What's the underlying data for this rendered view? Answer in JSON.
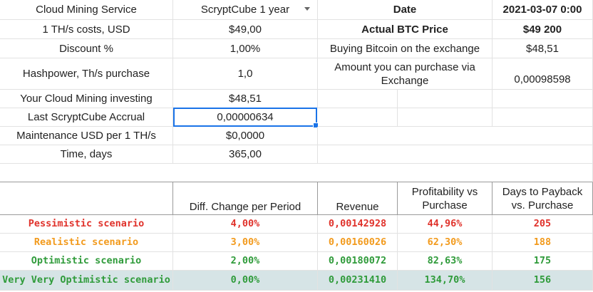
{
  "top": {
    "r1": {
      "label": "Cloud Mining Service",
      "value": "ScryptCube 1 year",
      "label2": "Date",
      "value2": "2021-03-07 0:00"
    },
    "r2": {
      "label": "1 TH/s costs, USD",
      "value": "$49,00",
      "label2": "Actual BTC Price",
      "value2": "$49 200"
    },
    "r3": {
      "label": "Discount %",
      "value": "1,00%",
      "label2": "Buying Bitcoin on the exchange",
      "value2": "$48,51"
    },
    "r4": {
      "label": "Hashpower, Th/s purchase",
      "value": "1,0",
      "label2": "Amount you can purchase via Exchange",
      "value2": "0,00098598"
    },
    "r5": {
      "label": "Your Cloud Mining investing",
      "value": "$48,51"
    },
    "r6": {
      "label": "Last ScryptCube Accrual",
      "value": "0,00000634"
    },
    "r7": {
      "label": "Maintenance USD per 1 TH/s",
      "value": "$0,0000"
    },
    "r8": {
      "label": "Time, days",
      "value": "365,00"
    }
  },
  "scenarios": {
    "headers": [
      "Diff. Change per Period",
      "Revenue",
      "Profitability vs Purchase",
      "Days to Payback vs. Purchase"
    ],
    "rows": [
      {
        "name": "Pessimistic scenario",
        "diff": "4,00%",
        "revenue": "0,00142928",
        "profit": "44,96%",
        "days": "205",
        "color": "#e0322b"
      },
      {
        "name": "Realistic scenario",
        "diff": "3,00%",
        "revenue": "0,00160026",
        "profit": "62,30%",
        "days": "188",
        "color": "#f29a1c"
      },
      {
        "name": "Optimistic scenario",
        "diff": "2,00%",
        "revenue": "0,00180072",
        "profit": "82,63%",
        "days": "175",
        "color": "#2f9b3a"
      },
      {
        "name": "Very Very Optimistic scenario",
        "diff": "0,00%",
        "revenue": "0,00231410",
        "profit": "134,70%",
        "days": "156",
        "color": "#2f9b3a"
      }
    ]
  }
}
